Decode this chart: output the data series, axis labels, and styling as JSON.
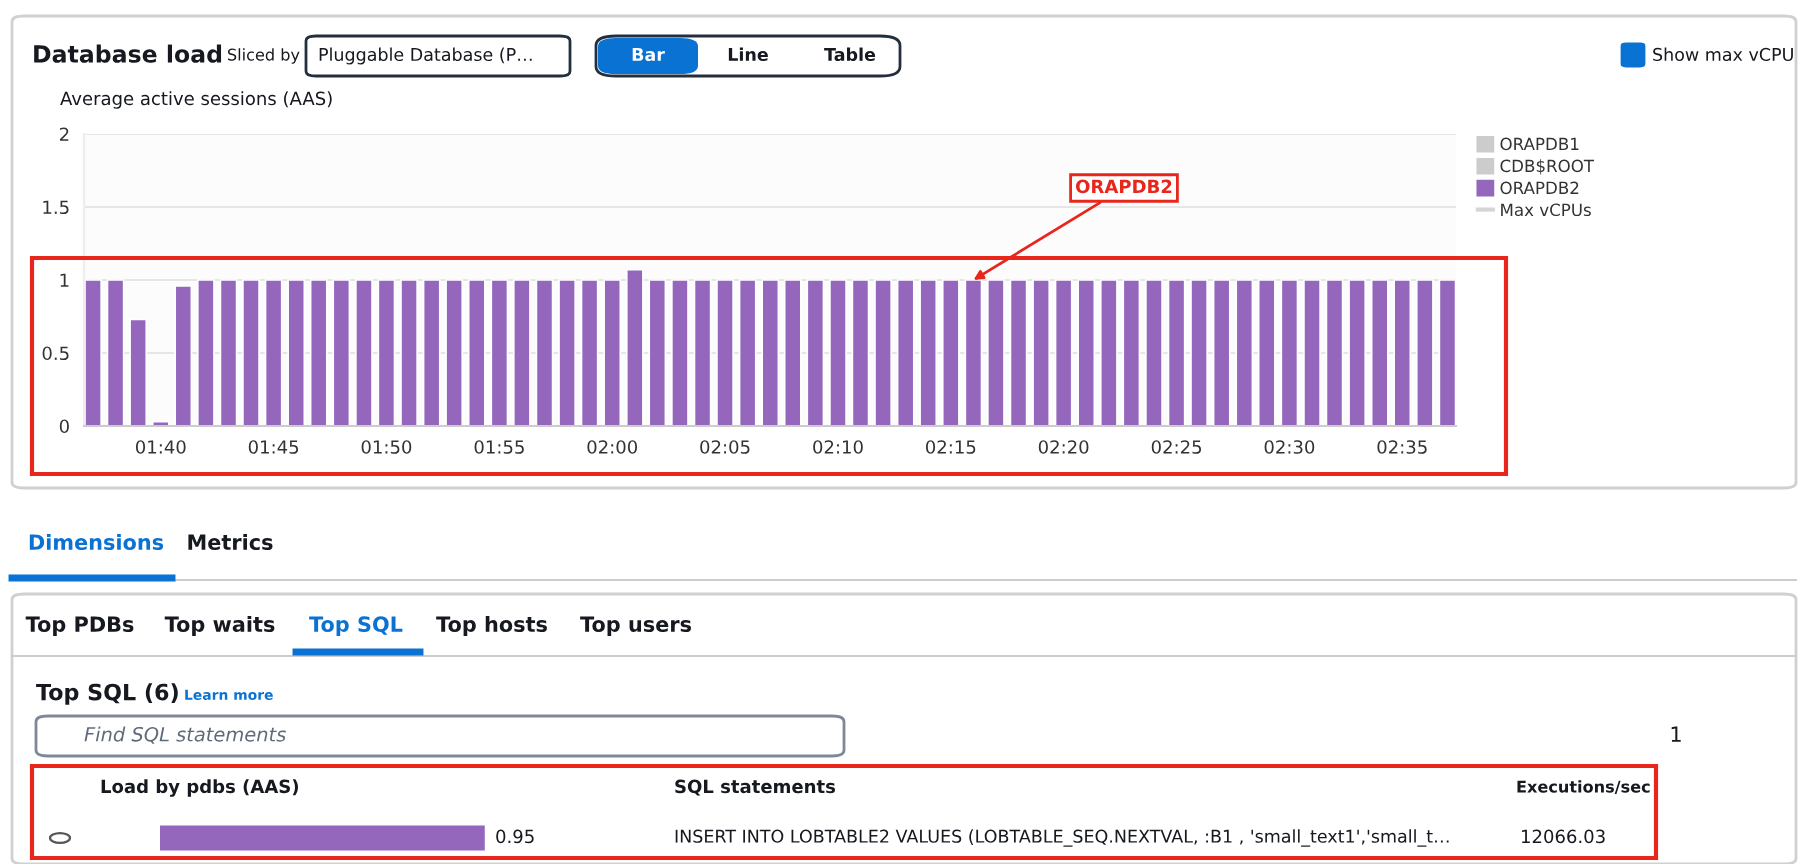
{
  "chart_data": [
    {
      "type": "bar",
      "title": "Database load",
      "ylabel": "Average active sessions (AAS)",
      "x": [
        1.6167,
        1.6333,
        1.65,
        1.6667,
        1.6833,
        1.7,
        1.7167,
        1.7333,
        1.75,
        1.7667,
        1.7833,
        1.8,
        1.8167,
        1.8333,
        1.85,
        1.8667,
        1.8833,
        1.9,
        1.9167,
        1.9333,
        1.95,
        1.9667,
        1.9833,
        2,
        2.0167,
        2.0333,
        2.05,
        2.0667,
        2.0833,
        2.1,
        2.1167,
        2.1333,
        2.15,
        2.1667,
        2.1833,
        2.2,
        2.2167,
        2.2333,
        2.25,
        2.2667,
        2.2833,
        2.3,
        2.3167,
        2.3333,
        2.35,
        2.3667,
        2.3833,
        2.4,
        2.4167,
        2.4333,
        2.45,
        2.4667,
        2.4833,
        2.5,
        2.5167,
        2.5333,
        2.55,
        2.5667,
        2.5833,
        2.6,
        2.6167
      ],
      "series": [
        {
          "name": "ORAPDB1",
          "color": "#cccccc",
          "values": [
            null,
            null,
            null,
            null,
            null,
            null,
            null,
            null,
            null,
            null,
            null,
            null,
            null,
            null,
            null,
            null,
            null,
            null,
            null,
            null,
            null,
            null,
            null,
            null,
            null,
            null,
            null,
            null,
            null,
            null,
            null,
            null,
            null,
            null,
            null,
            null,
            null,
            null,
            null,
            null,
            null,
            null,
            null,
            null,
            null,
            null,
            null,
            null,
            null,
            null,
            null,
            null,
            null,
            null,
            null,
            null,
            null,
            null,
            null,
            null,
            null
          ]
        },
        {
          "name": "CDB$ROOT",
          "color": "#cccccc",
          "values": [
            null,
            null,
            null,
            null,
            null,
            null,
            null,
            null,
            null,
            null,
            null,
            null,
            null,
            null,
            null,
            null,
            null,
            null,
            null,
            null,
            null,
            null,
            null,
            null,
            null,
            null,
            null,
            null,
            null,
            null,
            null,
            null,
            null,
            null,
            null,
            null,
            null,
            null,
            null,
            null,
            null,
            null,
            null,
            null,
            null,
            null,
            null,
            null,
            null,
            null,
            null,
            null,
            null,
            null,
            null,
            null,
            null,
            null,
            null,
            null,
            null
          ]
        },
        {
          "name": "ORAPDB2",
          "color": "#9467bd",
          "values": [
            1,
            1,
            0.73,
            0.03,
            0.96,
            1,
            1,
            1,
            1,
            1,
            1,
            1,
            1,
            1,
            1,
            1,
            1,
            1,
            1,
            1,
            1,
            1,
            1,
            1,
            1.07,
            1,
            1,
            1,
            1,
            1,
            1,
            1,
            1,
            1,
            1,
            1,
            1,
            1,
            1,
            1,
            1,
            1,
            1,
            1,
            1,
            1,
            1,
            1,
            1,
            1,
            1,
            1,
            1,
            1,
            1,
            1,
            1,
            1,
            1,
            1,
            1
          ]
        },
        {
          "name": "Max vCPUs",
          "type": "line",
          "color": "#d5d5d5",
          "values": [
            null,
            null,
            null,
            null,
            null,
            null,
            null,
            null,
            null,
            null,
            null,
            null,
            null,
            null,
            null,
            null,
            null,
            null,
            null,
            null,
            null,
            null,
            null,
            null,
            null,
            null,
            null,
            null,
            null,
            null,
            null,
            null,
            null,
            null,
            null,
            null,
            null,
            null,
            null,
            null,
            null,
            null,
            null,
            null,
            null,
            null,
            null,
            null,
            null,
            null,
            null,
            null,
            null,
            null,
            null,
            null,
            null,
            null,
            null,
            null,
            null
          ]
        }
      ],
      "xlim": [
        1.61,
        2.623
      ],
      "xticks": [
        {
          "value": 1.6667,
          "label": "01:40"
        },
        {
          "value": 1.75,
          "label": "01:45"
        },
        {
          "value": 1.8333,
          "label": "01:50"
        },
        {
          "value": 1.9167,
          "label": "01:55"
        },
        {
          "value": 2,
          "label": "02:00"
        },
        {
          "value": 2.0833,
          "label": "02:05"
        },
        {
          "value": 2.1667,
          "label": "02:10"
        },
        {
          "value": 2.25,
          "label": "02:15"
        },
        {
          "value": 2.3333,
          "label": "02:20"
        },
        {
          "value": 2.4167,
          "label": "02:25"
        },
        {
          "value": 2.5,
          "label": "02:30"
        },
        {
          "value": 2.5833,
          "label": "02:35"
        }
      ],
      "ylim": [
        0,
        2
      ],
      "yticks": [
        0,
        0.5,
        1,
        1.5,
        2
      ],
      "grid": "y",
      "legend": "right",
      "annotations": [
        "Sliced by",
        "Pluggable Database (P…",
        "Bar",
        "Line",
        "Table",
        "Show max vCPU",
        {
          "text": "ORAPDB2",
          "x": 2.2667,
          "y": 1
        }
      ]
    },
    {
      "type": "other",
      "annotations": [
        "Dimensions",
        "Metrics",
        "Top PDBs",
        "Top waits",
        "Top SQL",
        "Top hosts",
        "Top users",
        "Top SQL (6)",
        "Learn more",
        "Find SQL statements",
        "1",
        "Load by pdbs (AAS)",
        "SQL statements",
        "Executions/sec",
        "INSERT INTO LOBTABLE2 VALUES (LOBTABLE_SEQ.NEXTVAL, :B1 , 'small_text1','small_t…",
        "12066.03"
      ],
      "values": [
        0.95
      ],
      "value_labels": [
        "0.95"
      ],
      "color": "#9467bd"
    }
  ]
}
